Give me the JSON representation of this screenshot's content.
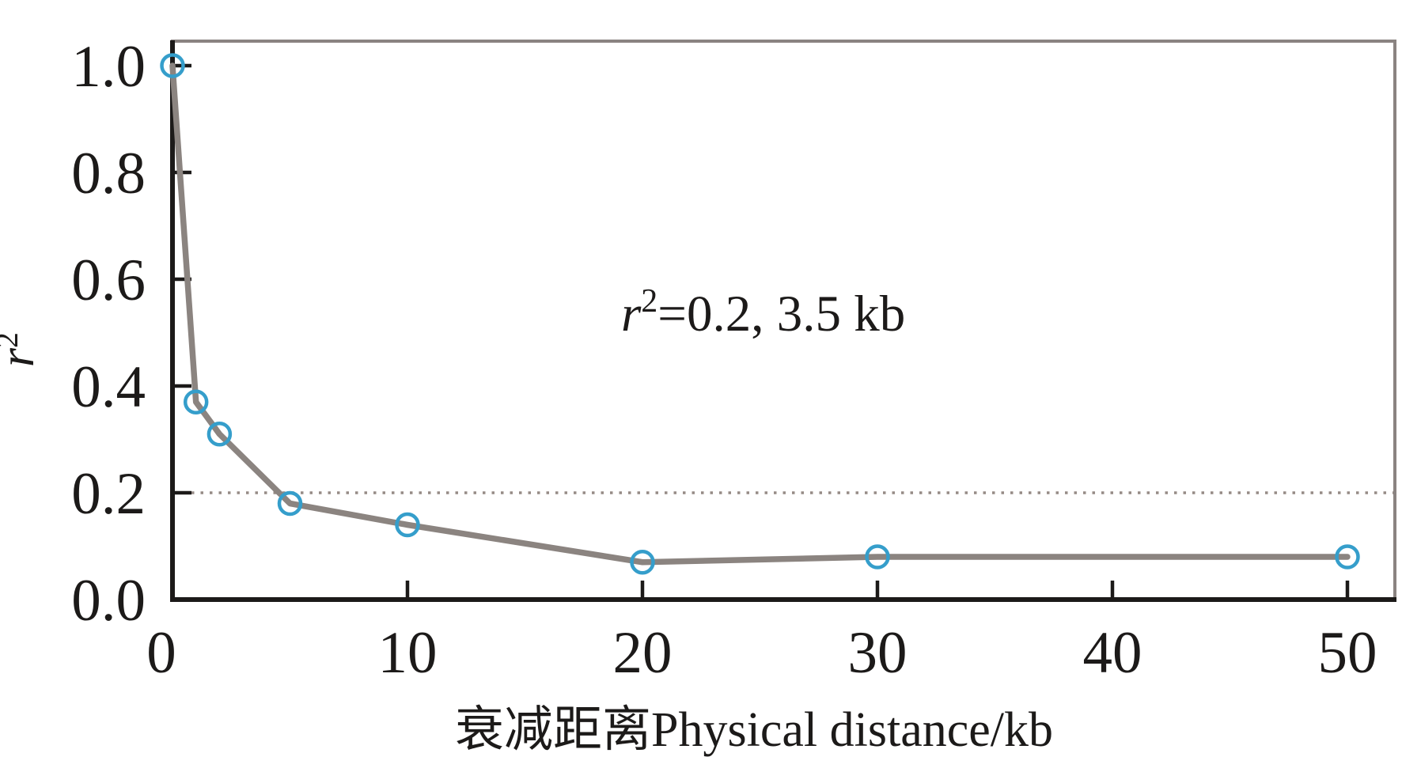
{
  "chart_data": {
    "type": "line",
    "title": "",
    "xlabel": "衰减距离Physical distance/kb",
    "ylabel": "r²",
    "x": [
      0,
      1,
      2,
      5,
      10,
      20,
      30,
      50
    ],
    "y": [
      1.0,
      0.37,
      0.31,
      0.18,
      0.14,
      0.07,
      0.08,
      0.08
    ],
    "x_ticks": [
      0,
      10,
      20,
      30,
      40,
      50
    ],
    "x_tick_labels": [
      "0",
      "10",
      "20",
      "30",
      "40",
      "50"
    ],
    "y_ticks": [
      0,
      0.2,
      0.4,
      0.6,
      0.8,
      1.0
    ],
    "y_tick_labels": [
      "0.0",
      "0.2",
      "0.4",
      "0.6",
      "0.8",
      "1.0"
    ],
    "xlim": [
      0,
      52
    ],
    "ylim": [
      0,
      1.045
    ],
    "grid": false,
    "legend": null,
    "threshold": {
      "y": 0.2,
      "style": "dotted",
      "label": "r²=0.2"
    },
    "annotation": "r²=0.2, 3.5 kb",
    "marker": {
      "shape": "open-circle",
      "color": "#359ecb"
    },
    "colors": {
      "line": "#8b8480",
      "marker": "#359ecb",
      "axis": "#1c1a19",
      "frame": "#8a8381",
      "threshold": "#968b86",
      "text": "#1c1a19",
      "background": "#ffffff"
    }
  },
  "text": {
    "r_italic": "r",
    "sup2": "2",
    "annotation_rest": "=0.2, 3.5 kb"
  }
}
